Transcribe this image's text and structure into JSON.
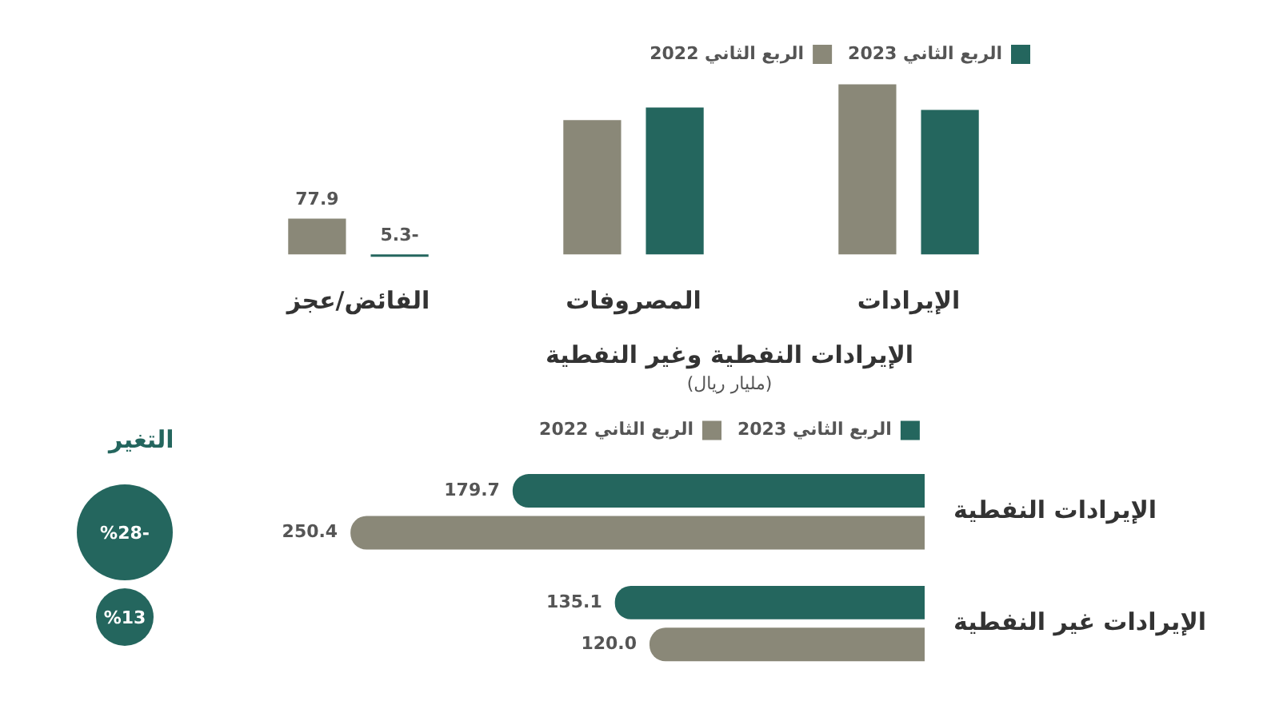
{
  "chart_data": [
    {
      "type": "bar",
      "categories": [
        "الفائض/عجز",
        "المصروفات",
        "الإيرادات"
      ],
      "series": [
        {
          "name": "الربع الثاني 2022",
          "color": "#8a8878",
          "values": [
            77.9,
            292.5,
            370.4
          ],
          "value_labels": [
            "77.9",
            null,
            null
          ]
        },
        {
          "name": "الربع الثاني 2023",
          "color": "#24665e",
          "values": [
            -5.3,
            320.1,
            314.8
          ],
          "value_labels": [
            "-5.3",
            null,
            null
          ]
        }
      ],
      "ylim": [
        -10,
        380
      ],
      "tick_labels": "x",
      "legend": "top right"
    },
    {
      "type": "bar",
      "orientation": "horizontal",
      "title": "الإيرادات النفطية وغير النفطية",
      "subtitle": "(مليار ريال)",
      "categories": [
        "الإيرادات النفطية",
        "الإيرادات غير النفطية"
      ],
      "series": [
        {
          "name": "الربع الثاني 2023",
          "color": "#24665e",
          "values": [
            179.7,
            135.1
          ],
          "value_labels": [
            "179.7",
            "135.1"
          ]
        },
        {
          "name": "الربع الثاني 2022",
          "color": "#8a8878",
          "values": [
            250.4,
            120.0
          ],
          "value_labels": [
            "250.4",
            "120.0"
          ]
        }
      ],
      "tick_labels": "y",
      "legend": "top",
      "annotations": [
        "التغير",
        "%28-",
        "%13"
      ]
    }
  ]
}
